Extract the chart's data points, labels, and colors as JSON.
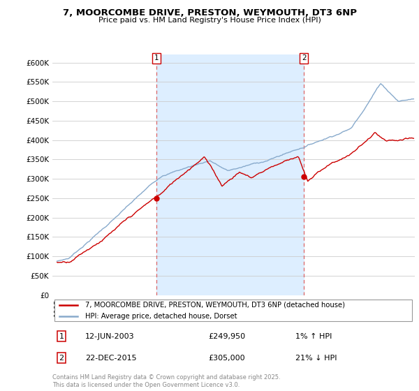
{
  "title": "7, MOORCOMBE DRIVE, PRESTON, WEYMOUTH, DT3 6NP",
  "subtitle": "Price paid vs. HM Land Registry's House Price Index (HPI)",
  "ylim": [
    0,
    620000
  ],
  "xlim_start": 1994.6,
  "xlim_end": 2025.4,
  "sale1_x": 2003.44,
  "sale1_y": 249950,
  "sale2_x": 2015.97,
  "sale2_y": 305000,
  "legend_line1": "7, MOORCOMBE DRIVE, PRESTON, WEYMOUTH, DT3 6NP (detached house)",
  "legend_line2": "HPI: Average price, detached house, Dorset",
  "annotation1_date": "12-JUN-2003",
  "annotation1_price": "£249,950",
  "annotation1_hpi": "1% ↑ HPI",
  "annotation2_date": "22-DEC-2015",
  "annotation2_price": "£305,000",
  "annotation2_hpi": "21% ↓ HPI",
  "copyright_text": "Contains HM Land Registry data © Crown copyright and database right 2025.\nThis data is licensed under the Open Government Licence v3.0.",
  "line_color_red": "#cc0000",
  "line_color_blue": "#88aacc",
  "fill_color_blue": "#ddeeff",
  "grid_color": "#cccccc",
  "ytick_vals": [
    0,
    50000,
    100000,
    150000,
    200000,
    250000,
    300000,
    350000,
    400000,
    450000,
    500000,
    550000,
    600000
  ],
  "ytick_labels": [
    "£0",
    "£50K",
    "£100K",
    "£150K",
    "£200K",
    "£250K",
    "£300K",
    "£350K",
    "£400K",
    "£450K",
    "£500K",
    "£550K",
    "£600K"
  ]
}
